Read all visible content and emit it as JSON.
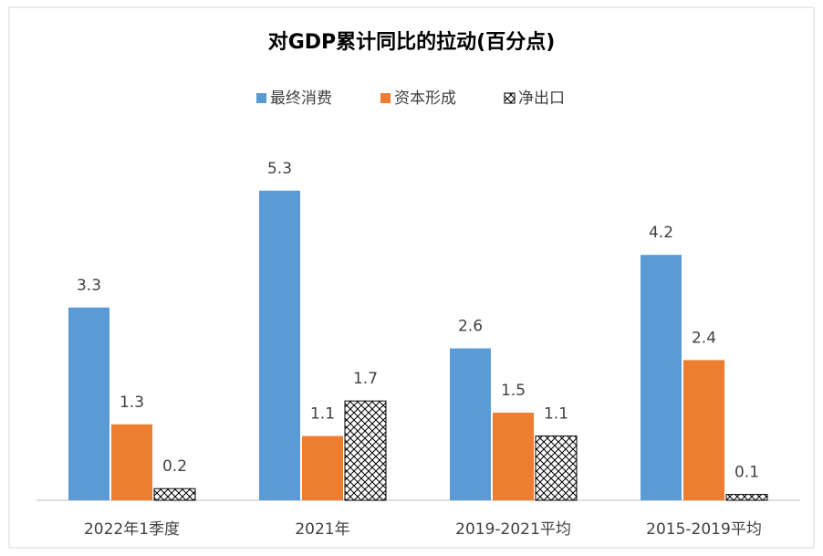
{
  "chart_data": {
    "type": "bar",
    "title": "对GDP累计同比的拉动(百分点)",
    "categories": [
      "2022年1季度",
      "2021年",
      "2019-2021平均",
      "2015-2019平均"
    ],
    "series": [
      {
        "name": "最终消费",
        "color": "#5b9bd5",
        "values": [
          3.3,
          5.3,
          2.6,
          4.2
        ]
      },
      {
        "name": "资本形成",
        "color": "#ed7d31",
        "values": [
          1.3,
          1.1,
          1.5,
          2.4
        ]
      },
      {
        "name": "净出口",
        "color": "#000000",
        "pattern": "crosshatch",
        "values": [
          0.2,
          1.7,
          1.1,
          0.1
        ]
      }
    ],
    "legend": "top"
  }
}
